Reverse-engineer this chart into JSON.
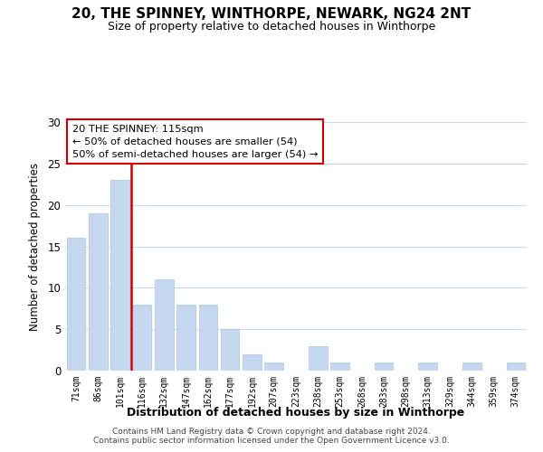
{
  "title": "20, THE SPINNEY, WINTHORPE, NEWARK, NG24 2NT",
  "subtitle": "Size of property relative to detached houses in Winthorpe",
  "xlabel": "Distribution of detached houses by size in Winthorpe",
  "ylabel": "Number of detached properties",
  "bar_color": "#c5d8f0",
  "bar_edge_color": "#a8c4e0",
  "categories": [
    "71sqm",
    "86sqm",
    "101sqm",
    "116sqm",
    "132sqm",
    "147sqm",
    "162sqm",
    "177sqm",
    "192sqm",
    "207sqm",
    "223sqm",
    "238sqm",
    "253sqm",
    "268sqm",
    "283sqm",
    "298sqm",
    "313sqm",
    "329sqm",
    "344sqm",
    "359sqm",
    "374sqm"
  ],
  "values": [
    16,
    19,
    23,
    8,
    11,
    8,
    8,
    5,
    2,
    1,
    0,
    3,
    1,
    0,
    1,
    0,
    1,
    0,
    1,
    0,
    1
  ],
  "ylim": [
    0,
    30
  ],
  "yticks": [
    0,
    5,
    10,
    15,
    20,
    25,
    30
  ],
  "vline_color": "#cc0000",
  "vline_x_index": 2.5,
  "annotation_title": "20 THE SPINNEY: 115sqm",
  "annotation_line1": "← 50% of detached houses are smaller (54)",
  "annotation_line2": "50% of semi-detached houses are larger (54) →",
  "annotation_box_color": "#ffffff",
  "annotation_box_edge": "#cc0000",
  "footnote1": "Contains HM Land Registry data © Crown copyright and database right 2024.",
  "footnote2": "Contains public sector information licensed under the Open Government Licence v3.0.",
  "background_color": "#ffffff",
  "grid_color": "#c8d8e8"
}
